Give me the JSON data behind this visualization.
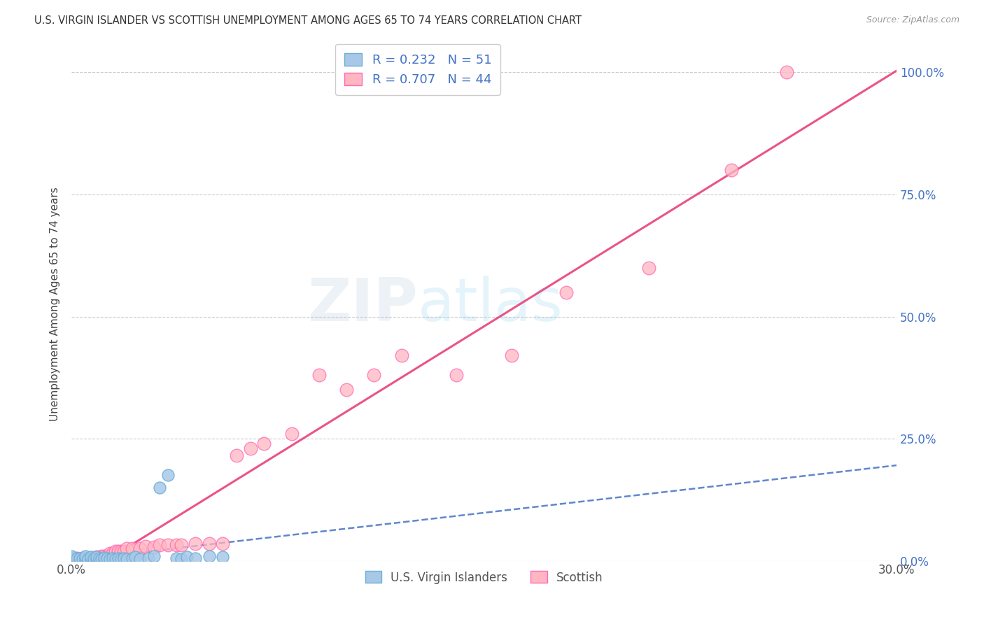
{
  "title": "U.S. VIRGIN ISLANDER VS SCOTTISH UNEMPLOYMENT AMONG AGES 65 TO 74 YEARS CORRELATION CHART",
  "source": "Source: ZipAtlas.com",
  "ylabel": "Unemployment Among Ages 65 to 74 years",
  "xlim": [
    0.0,
    0.3
  ],
  "ylim": [
    0.0,
    1.05
  ],
  "xtick_positions": [
    0.0,
    0.05,
    0.1,
    0.15,
    0.2,
    0.25,
    0.3
  ],
  "xtick_labels": [
    "0.0%",
    "",
    "",
    "",
    "",
    "",
    "30.0%"
  ],
  "ytick_positions": [
    0.0,
    0.25,
    0.5,
    0.75,
    1.0
  ],
  "ytick_labels": [
    "0.0%",
    "25.0%",
    "50.0%",
    "75.0%",
    "100.0%"
  ],
  "blue_scatter_color": "#a8c8e8",
  "blue_edge_color": "#6baed6",
  "pink_scatter_color": "#ffb6c1",
  "pink_edge_color": "#ff69b4",
  "trend_blue_color": "#4472c4",
  "trend_pink_color": "#e8417a",
  "legend_R1": "0.232",
  "legend_N1": "51",
  "legend_R2": "0.707",
  "legend_N2": "44",
  "legend_label1": "U.S. Virgin Islanders",
  "legend_label2": "Scottish",
  "blue_x": [
    0.0,
    0.0,
    0.0,
    0.0,
    0.0,
    0.0,
    0.0,
    0.0,
    0.0,
    0.0,
    0.002,
    0.002,
    0.003,
    0.003,
    0.004,
    0.005,
    0.005,
    0.005,
    0.006,
    0.007,
    0.007,
    0.008,
    0.008,
    0.009,
    0.009,
    0.01,
    0.01,
    0.011,
    0.012,
    0.012,
    0.013,
    0.014,
    0.015,
    0.016,
    0.017,
    0.018,
    0.019,
    0.02,
    0.022,
    0.023,
    0.025,
    0.028,
    0.03,
    0.032,
    0.035,
    0.038,
    0.04,
    0.042,
    0.045,
    0.05,
    0.055
  ],
  "blue_y": [
    0.0,
    0.0,
    0.0,
    0.0,
    0.002,
    0.003,
    0.005,
    0.005,
    0.007,
    0.01,
    0.0,
    0.005,
    0.0,
    0.005,
    0.003,
    0.0,
    0.005,
    0.01,
    0.003,
    0.0,
    0.008,
    0.0,
    0.005,
    0.003,
    0.008,
    0.0,
    0.005,
    0.003,
    0.0,
    0.007,
    0.005,
    0.003,
    0.005,
    0.003,
    0.005,
    0.003,
    0.005,
    0.003,
    0.005,
    0.008,
    0.003,
    0.005,
    0.01,
    0.15,
    0.175,
    0.005,
    0.003,
    0.008,
    0.005,
    0.01,
    0.008
  ],
  "pink_x": [
    0.0,
    0.002,
    0.004,
    0.005,
    0.006,
    0.007,
    0.008,
    0.009,
    0.01,
    0.011,
    0.012,
    0.013,
    0.014,
    0.015,
    0.016,
    0.017,
    0.018,
    0.019,
    0.02,
    0.022,
    0.025,
    0.027,
    0.03,
    0.032,
    0.035,
    0.038,
    0.04,
    0.045,
    0.05,
    0.055,
    0.06,
    0.065,
    0.07,
    0.08,
    0.09,
    0.1,
    0.11,
    0.12,
    0.14,
    0.16,
    0.18,
    0.21,
    0.24,
    0.26
  ],
  "pink_y": [
    0.0,
    0.005,
    0.005,
    0.005,
    0.005,
    0.005,
    0.005,
    0.008,
    0.008,
    0.01,
    0.01,
    0.01,
    0.015,
    0.015,
    0.02,
    0.02,
    0.02,
    0.02,
    0.025,
    0.025,
    0.025,
    0.03,
    0.028,
    0.032,
    0.032,
    0.032,
    0.032,
    0.035,
    0.035,
    0.035,
    0.215,
    0.23,
    0.24,
    0.26,
    0.38,
    0.35,
    0.38,
    0.42,
    0.38,
    0.42,
    0.55,
    0.6,
    0.8,
    1.0
  ],
  "watermark_line1": "ZIP",
  "watermark_line2": "atlas",
  "background_color": "#ffffff",
  "grid_color": "#cccccc"
}
